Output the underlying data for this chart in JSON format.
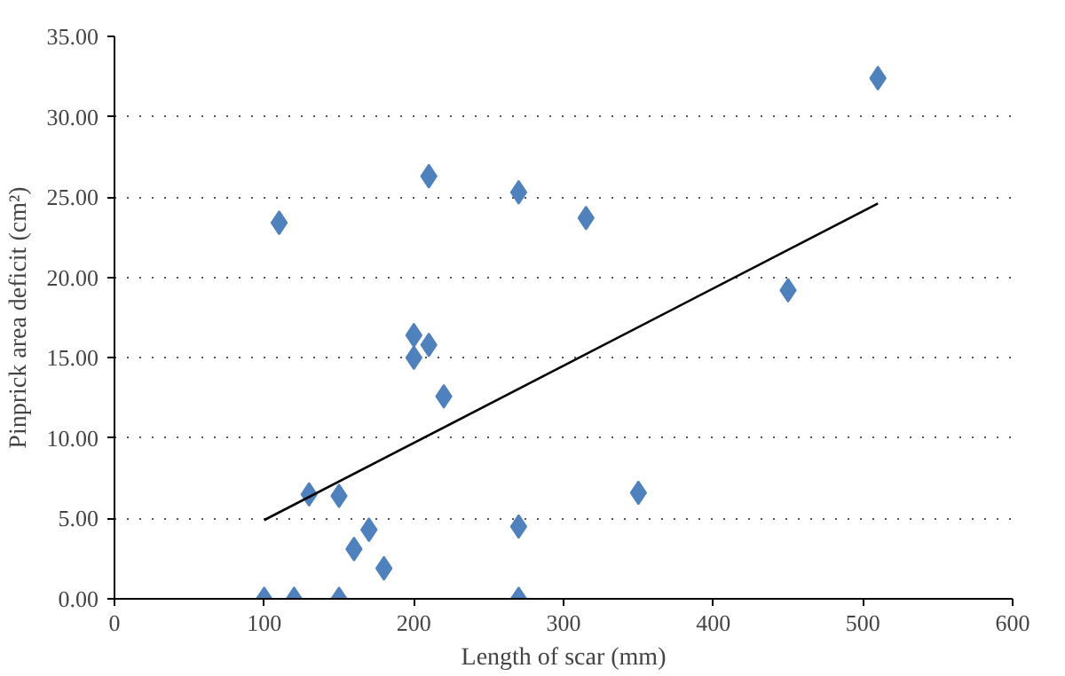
{
  "chart_data": {
    "type": "scatter",
    "xlabel": "Length of scar (mm)",
    "ylabel": "Pinprick area deficit (cm²)",
    "xlim": [
      0,
      600
    ],
    "xticks": [
      0,
      100,
      200,
      300,
      400,
      500,
      600
    ],
    "ylim": [
      0,
      35
    ],
    "yticks": [
      {
        "value": 0,
        "label": "0.00"
      },
      {
        "value": 5,
        "label": "5.00"
      },
      {
        "value": 10,
        "label": "10.00"
      },
      {
        "value": 15,
        "label": "15.00"
      },
      {
        "value": 20,
        "label": "20.00"
      },
      {
        "value": 25,
        "label": "25.00"
      },
      {
        "value": 30,
        "label": "30.00"
      },
      {
        "value": 35,
        "label": "35.00"
      }
    ],
    "grid": "y",
    "marker": "diamond",
    "series": [
      {
        "color": "#4f81bd",
        "x": [
          510,
          110,
          210,
          270,
          315,
          450,
          200,
          210,
          200,
          220,
          130,
          150,
          350,
          170,
          160,
          180,
          270,
          100,
          120,
          150,
          270
        ],
        "values": [
          32.4,
          23.4,
          26.3,
          25.3,
          23.7,
          19.2,
          16.4,
          15.8,
          15.0,
          12.6,
          6.5,
          6.4,
          6.6,
          4.3,
          3.1,
          1.9,
          4.5,
          0,
          0,
          0,
          0
        ]
      },
      {
        "type": "line",
        "color": "#000000",
        "marker": "none",
        "x": [
          100,
          510
        ],
        "values": [
          4.9,
          24.6
        ]
      }
    ]
  }
}
